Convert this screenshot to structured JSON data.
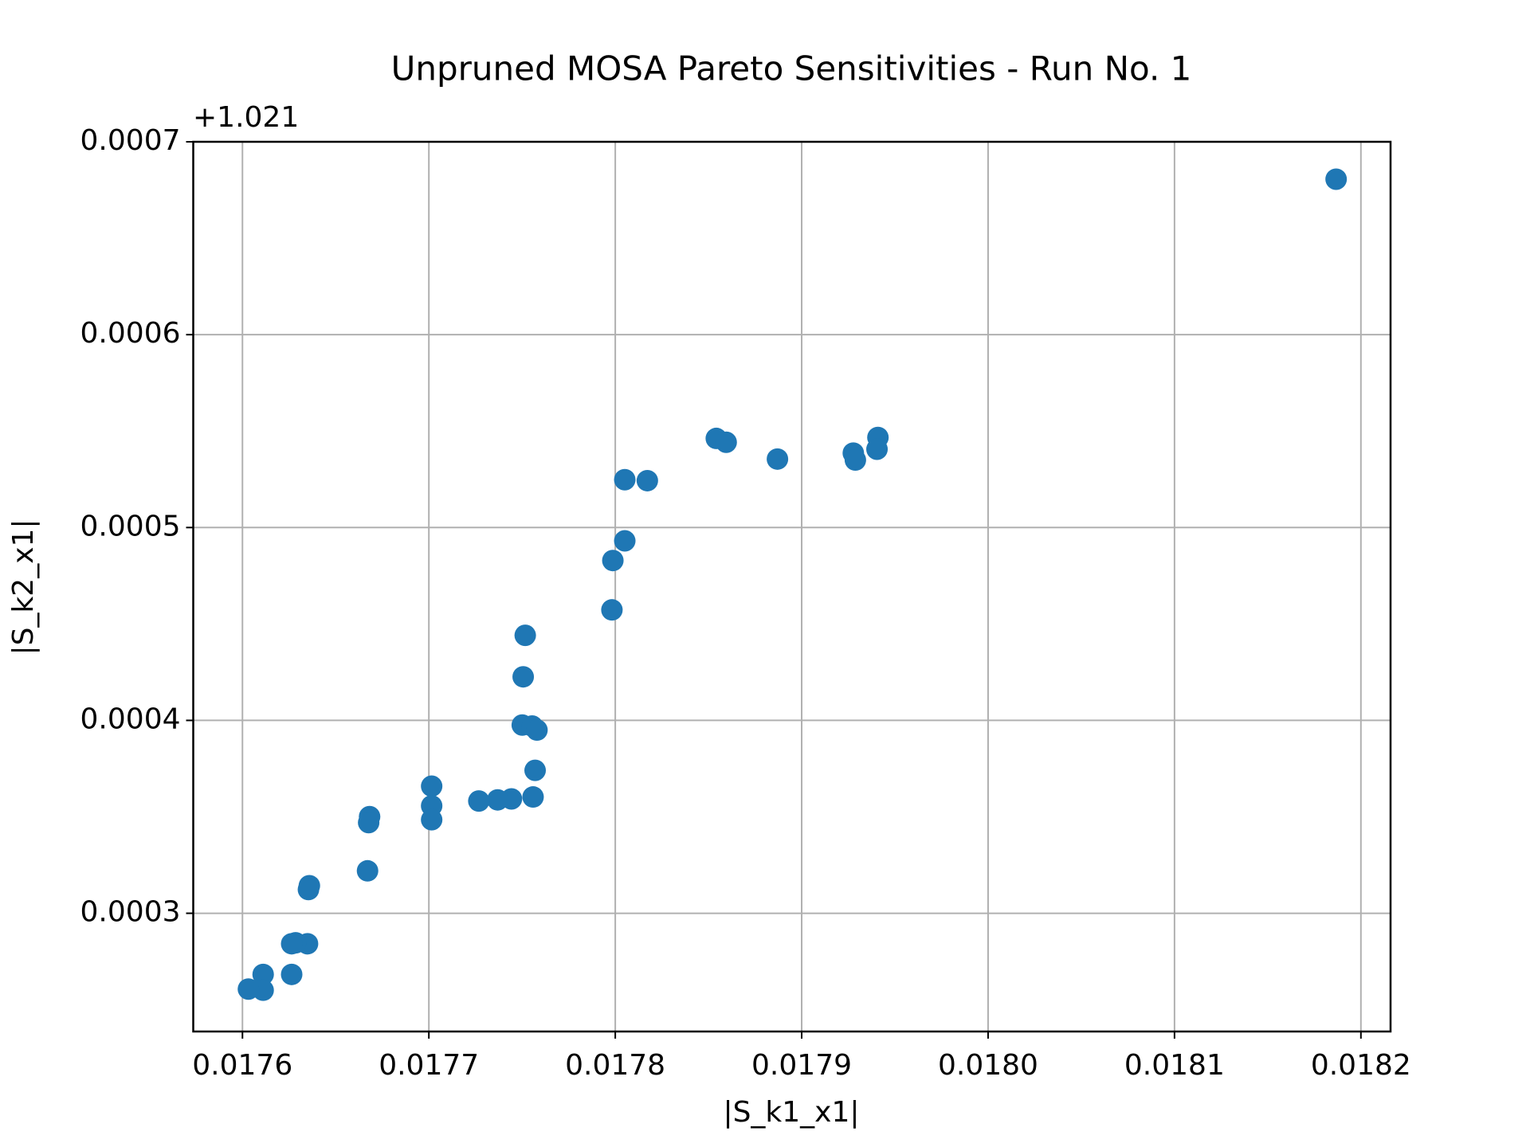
{
  "chart_data": {
    "type": "scatter",
    "title": "Unpruned MOSA Pareto Sensitivities - Run No. 1",
    "x_label": "|S_k1_x1|",
    "y_label": "|S_k2_x1|",
    "y_offset_label": "+1.021",
    "color": "#1f77b4",
    "grid": true,
    "xlim": [
      0.0175736,
      0.0182159
    ],
    "ylim": [
      0.0002387,
      0.0007
    ],
    "xticks": [
      0.0176,
      0.0177,
      0.0178,
      0.0179,
      {
        "value": 0.018,
        "label": "0.0180"
      },
      0.0181,
      0.0182
    ],
    "yticks": [
      0.0003,
      0.0004,
      0.0005,
      0.0006,
      0.0007
    ],
    "x": [
      0.0181867,
      0.0179409,
      0.0179404,
      0.0179277,
      0.0179288,
      0.017887,
      0.0178542,
      0.0178595,
      0.0178172,
      0.0178051,
      0.0178051,
      0.0177987,
      0.0177982,
      0.0177517,
      0.0177506,
      0.0177501,
      0.0177554,
      0.017758,
      0.017757,
      0.0177559,
      0.0177443,
      0.0177369,
      0.0177268,
      0.0177015,
      0.0177015,
      0.0177015,
      0.0176682,
      0.0176677,
      0.0176671,
      0.0176359,
      0.0176354,
      0.0176349,
      0.0176285,
      0.0176264,
      0.0176264,
      0.0176111,
      0.0176111,
      0.0176032
    ],
    "values": [
      0.0006806,
      0.0005467,
      0.0005406,
      0.0005386,
      0.000535,
      0.0005355,
      0.0005462,
      0.0005442,
      0.0005243,
      0.0005248,
      0.0004931,
      0.0004829,
      0.0004573,
      0.0004441,
      0.0004226,
      0.0003976,
      0.0003971,
      0.000395,
      0.0003741,
      0.0003603,
      0.0003593,
      0.0003588,
      0.0003582,
      0.0003659,
      0.0003557,
      0.0003485,
      0.0003501,
      0.000347,
      0.000322,
      0.0003143,
      0.0003123,
      0.0002842,
      0.0002847,
      0.0002842,
      0.0002683,
      0.0002683,
      0.0002601,
      0.0002607
    ]
  }
}
